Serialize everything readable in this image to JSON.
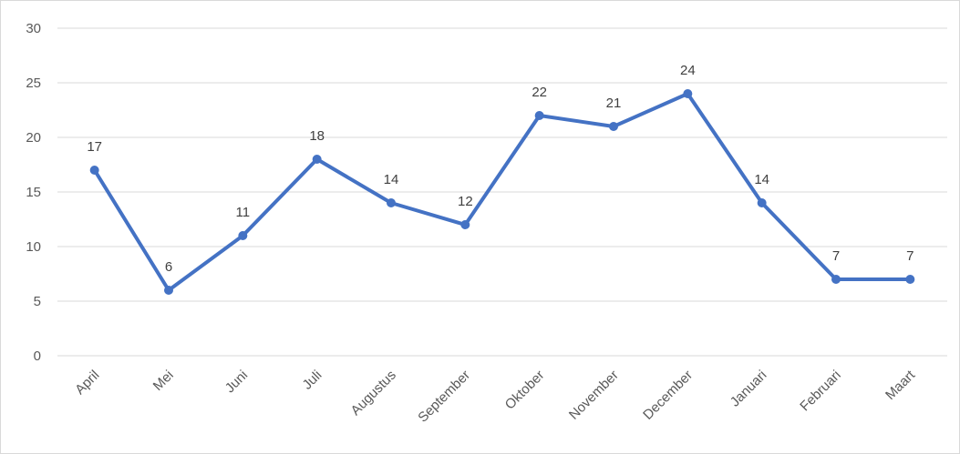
{
  "chart_data": {
    "type": "line",
    "categories": [
      "April",
      "Mei",
      "Juni",
      "Juli",
      "Augustus",
      "September",
      "Oktober",
      "November",
      "December",
      "Januari",
      "Februari",
      "Maart"
    ],
    "values": [
      17,
      6,
      11,
      18,
      14,
      12,
      22,
      21,
      24,
      14,
      7,
      7
    ],
    "data_labels": [
      "17",
      "6",
      "11",
      "18",
      "14",
      "12",
      "22",
      "21",
      "24",
      "14",
      "7",
      "7"
    ],
    "y_ticks": [
      "0",
      "5",
      "10",
      "15",
      "20",
      "25",
      "30"
    ],
    "ylim": [
      0,
      30
    ],
    "title": "",
    "xlabel": "",
    "ylabel": "",
    "grid": true,
    "legend": "none",
    "colors": {
      "line": "#4472C4",
      "grid": "#d9d9d9",
      "text": "#595959"
    }
  }
}
